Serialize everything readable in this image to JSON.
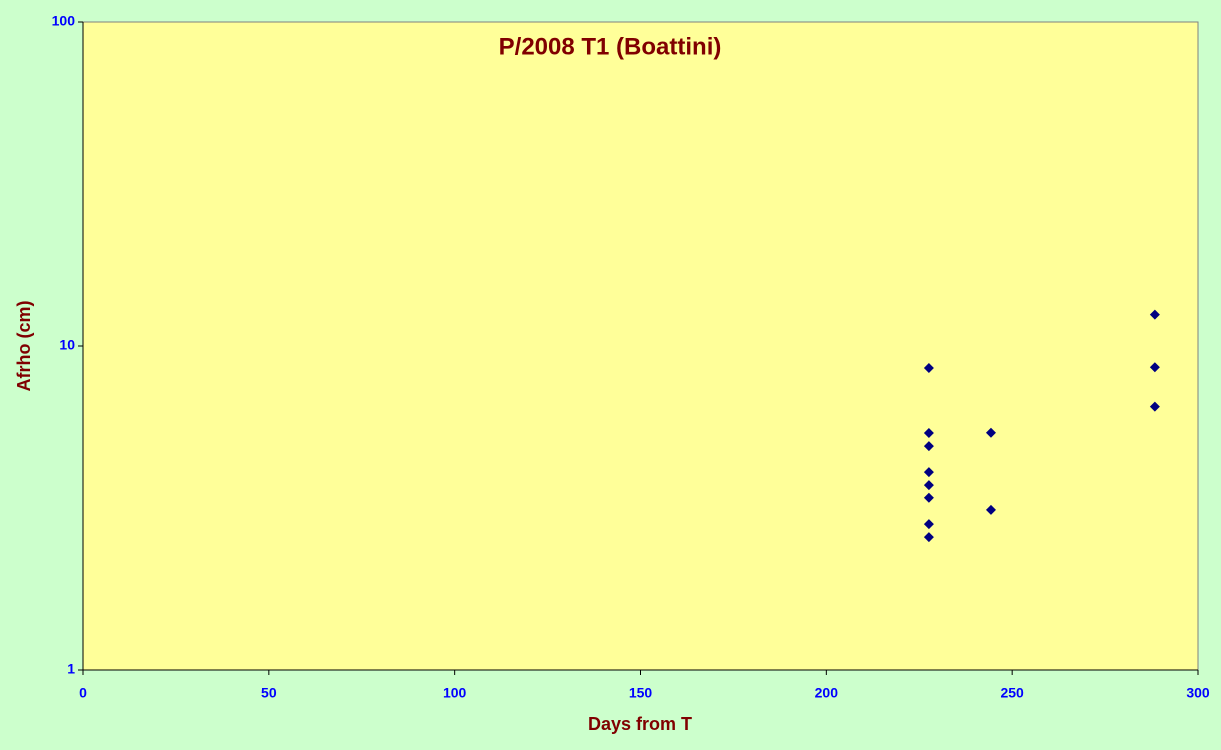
{
  "chart_data": {
    "type": "scatter",
    "title": "P/2008 T1 (Boattini)",
    "x_label": "Days from T",
    "y_label": "Afrho (cm)",
    "series": [
      {
        "color": "#000080",
        "x": [
          227.6,
          227.6,
          227.6,
          227.6,
          227.6,
          227.6,
          227.6,
          227.6,
          244.3,
          244.3,
          288.4,
          288.4,
          288.4
        ],
        "values": [
          8.55,
          5.39,
          4.91,
          4.08,
          3.72,
          3.4,
          2.82,
          2.57,
          5.4,
          3.12,
          12.5,
          8.6,
          6.5
        ]
      }
    ],
    "xlim": [
      0,
      300
    ],
    "xticks": [
      0,
      50,
      100,
      150,
      200,
      250,
      300
    ],
    "ylim": [
      1,
      100
    ],
    "yticks": [
      1,
      10,
      100
    ],
    "y_log_scale": true,
    "plot_background": "#ffff99",
    "page_background": "#ccffcc"
  }
}
